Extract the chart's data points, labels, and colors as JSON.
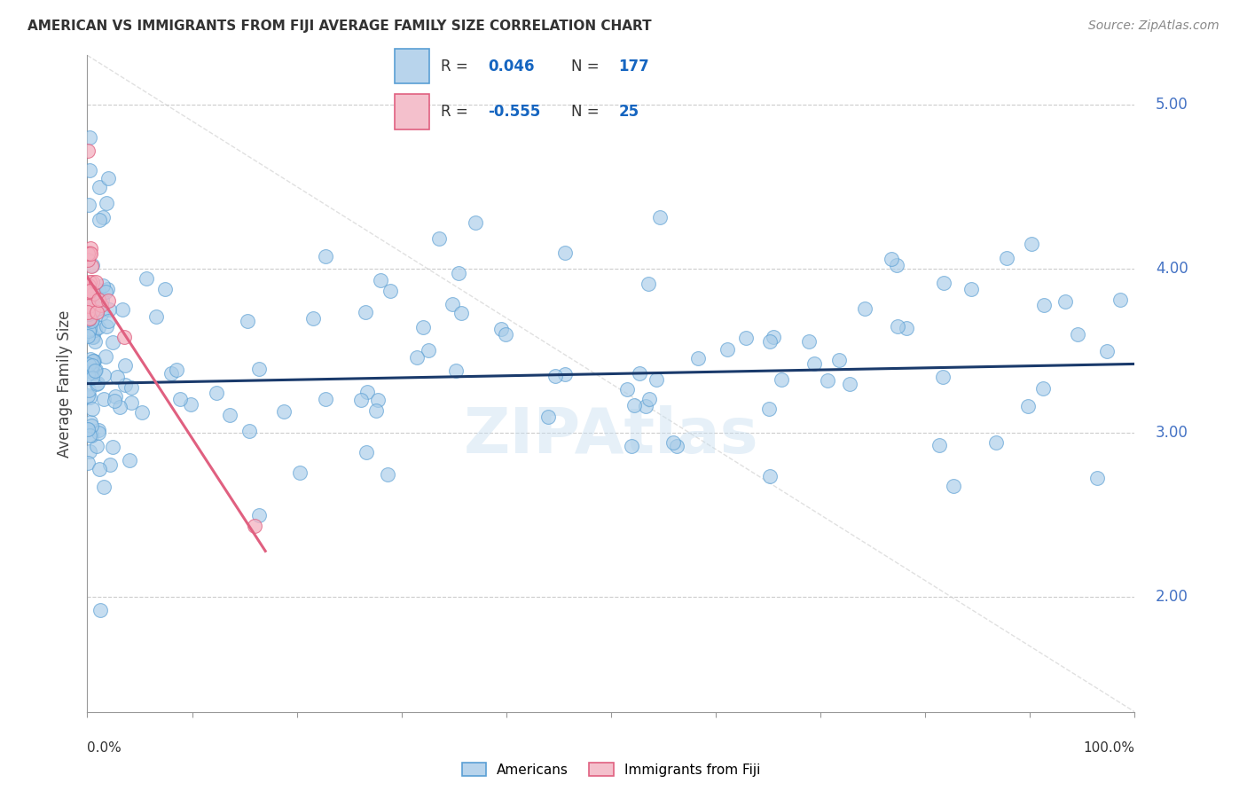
{
  "title": "AMERICAN VS IMMIGRANTS FROM FIJI AVERAGE FAMILY SIZE CORRELATION CHART",
  "source": "Source: ZipAtlas.com",
  "ylabel": "Average Family Size",
  "xlim": [
    0,
    100
  ],
  "ylim": [
    1.3,
    5.3
  ],
  "yticks": [
    2.0,
    3.0,
    4.0,
    5.0
  ],
  "background_color": "#ffffff",
  "watermark": "ZIPAtlas",
  "am_color": "#a8cce8",
  "am_edge_color": "#5a9fd4",
  "am_trend_color": "#1a3a6b",
  "fiji_color": "#f4b0c0",
  "fiji_edge_color": "#e06080",
  "fiji_trend_color": "#e06080",
  "diag_line_color": "#cccccc",
  "grid_color": "#cccccc",
  "legend_box_color_american": "#b8d4ec",
  "legend_box_color_fiji": "#f4c0cc",
  "legend_r_color": "#1565c0",
  "legend_n_color": "#1565c0",
  "ytick_color": "#4472c4",
  "am_R": "0.046",
  "am_N": "177",
  "fiji_R": "-0.555",
  "fiji_N": "25"
}
